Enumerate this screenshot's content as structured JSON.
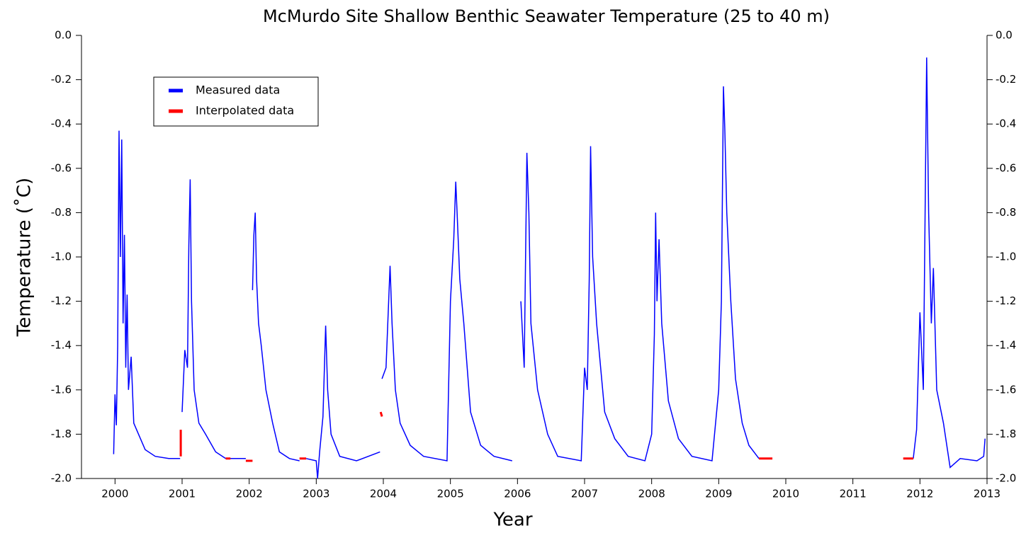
{
  "chart_data": {
    "type": "line",
    "title": "McMurdo Site Shallow Benthic Seawater Temperature (25 to 40 m)",
    "x_label": "Year",
    "y_label": "Temperature (˚C)",
    "xlim": [
      1999.5,
      2013
    ],
    "xticks": [
      2000,
      2001,
      2002,
      2003,
      2004,
      2005,
      2006,
      2007,
      2008,
      2009,
      2010,
      2011,
      2012,
      2013
    ],
    "ylim": [
      -2.0,
      0.0
    ],
    "yticks": [
      {
        "value": -2.0,
        "label": "-2.0"
      },
      {
        "value": -1.8,
        "label": "-1.8"
      },
      {
        "value": -1.6,
        "label": "-1.6"
      },
      {
        "value": -1.4,
        "label": "-1.4"
      },
      {
        "value": -1.2,
        "label": "-1.2"
      },
      {
        "value": -1.0,
        "label": "-1.0"
      },
      {
        "value": -0.8,
        "label": "-0.8"
      },
      {
        "value": -0.6,
        "label": "-0.6"
      },
      {
        "value": -0.4,
        "label": "-0.4"
      },
      {
        "value": -0.2,
        "label": "-0.2"
      },
      {
        "value": 0.0,
        "label": "0.0"
      }
    ],
    "legend": "upper left",
    "series": [
      {
        "name": "Measured data",
        "color": "#0000ff",
        "x": [
          1999.98,
          2000.0,
          2000.02,
          2000.04,
          2000.06,
          2000.08,
          2000.1,
          2000.12,
          2000.14,
          2000.16,
          2000.18,
          2000.2,
          2000.24,
          2000.28,
          2000.35,
          2000.45,
          2000.6,
          2000.8,
          2000.97,
          2000.99,
          2001.0,
          2001.04,
          2001.08,
          2001.1,
          2001.12,
          2001.14,
          2001.18,
          2001.25,
          2001.35,
          2001.5,
          2001.65,
          2001.68,
          2001.7,
          2001.95,
          2002.0,
          2002.05,
          2002.07,
          2002.09,
          2002.11,
          2002.14,
          2002.18,
          2002.25,
          2002.35,
          2002.45,
          2002.6,
          2002.75,
          2002.8,
          2002.85,
          2003.0,
          2003.02,
          2003.05,
          2003.1,
          2003.14,
          2003.17,
          2003.22,
          2003.35,
          2003.6,
          2003.95,
          2003.97,
          2003.98,
          2004.04,
          2004.1,
          2004.13,
          2004.18,
          2004.25,
          2004.4,
          2004.6,
          2004.95,
          2005.0,
          2005.05,
          2005.08,
          2005.1,
          2005.14,
          2005.2,
          2005.3,
          2005.45,
          2005.65,
          2005.92,
          2006.0,
          2006.05,
          2006.1,
          2006.14,
          2006.17,
          2006.2,
          2006.3,
          2006.45,
          2006.6,
          2006.95,
          2007.0,
          2007.04,
          2007.07,
          2007.09,
          2007.12,
          2007.18,
          2007.3,
          2007.45,
          2007.65,
          2007.9,
          2008.0,
          2008.04,
          2008.06,
          2008.08,
          2008.11,
          2008.15,
          2008.25,
          2008.4,
          2008.6,
          2008.9,
          2009.0,
          2009.04,
          2009.07,
          2009.09,
          2009.12,
          2009.18,
          2009.25,
          2009.35,
          2009.45,
          2009.6,
          2010.5,
          2011.9,
          2011.95,
          2012.0,
          2012.05,
          2012.1,
          2012.13,
          2012.17,
          2012.2,
          2012.25,
          2012.35,
          2012.45,
          2012.6,
          2012.85,
          2012.95,
          2012.97
        ],
        "values": [
          -1.89,
          -1.62,
          -1.76,
          -1.4,
          -0.43,
          -1.0,
          -0.47,
          -1.3,
          -0.9,
          -1.5,
          -1.17,
          -1.6,
          -1.45,
          -1.75,
          -1.8,
          -1.87,
          -1.9,
          -1.91,
          -1.91,
          null,
          -1.7,
          -1.42,
          -1.5,
          -0.95,
          -0.65,
          -1.2,
          -1.6,
          -1.75,
          -1.8,
          -1.88,
          -1.91,
          null,
          -1.91,
          -1.91,
          null,
          -1.15,
          -0.9,
          -0.8,
          -1.1,
          -1.3,
          -1.4,
          -1.6,
          -1.75,
          -1.88,
          -1.91,
          -1.92,
          null,
          -1.91,
          -1.92,
          -2.0,
          -1.88,
          -1.72,
          -1.31,
          -1.6,
          -1.8,
          -1.9,
          -1.92,
          -1.88,
          null,
          -1.55,
          -1.5,
          -1.04,
          -1.3,
          -1.6,
          -1.75,
          -1.85,
          -1.9,
          -1.92,
          -1.2,
          -0.92,
          -0.66,
          -0.8,
          -1.1,
          -1.3,
          -1.7,
          -1.85,
          -1.9,
          -1.92,
          null,
          -1.2,
          -1.5,
          -0.53,
          -0.8,
          -1.3,
          -1.6,
          -1.8,
          -1.9,
          -1.92,
          -1.5,
          -1.6,
          -1.1,
          -0.5,
          -1.0,
          -1.3,
          -1.7,
          -1.82,
          -1.9,
          -1.92,
          -1.8,
          -1.35,
          -0.8,
          -1.2,
          -0.92,
          -1.3,
          -1.65,
          -1.82,
          -1.9,
          -1.92,
          -1.6,
          -1.2,
          -0.23,
          -0.42,
          -0.8,
          -1.2,
          -1.55,
          -1.75,
          -1.85,
          -1.91,
          null,
          -1.91,
          -1.78,
          -1.25,
          -1.6,
          -0.1,
          -0.8,
          -1.3,
          -1.05,
          -1.6,
          -1.75,
          -1.95,
          -1.91,
          -1.92,
          -1.9,
          -1.82
        ]
      },
      {
        "name": "Interpolated data",
        "color": "#ff0000",
        "x": [
          2000.98,
          2000.98,
          2001.0,
          2001.65,
          2001.72,
          2001.8,
          2001.95,
          2002.05,
          2002.3,
          2002.75,
          2002.85,
          2003.5,
          2003.96,
          2003.98,
          2004.5,
          2009.6,
          2009.8,
          2010.0,
          2011.75,
          2011.9
        ],
        "values": [
          -1.78,
          -1.9,
          null,
          -1.91,
          -1.91,
          null,
          -1.92,
          -1.92,
          null,
          -1.91,
          -1.91,
          null,
          -1.7,
          -1.72,
          null,
          -1.91,
          -1.91,
          null,
          -1.91,
          -1.91
        ]
      }
    ]
  }
}
